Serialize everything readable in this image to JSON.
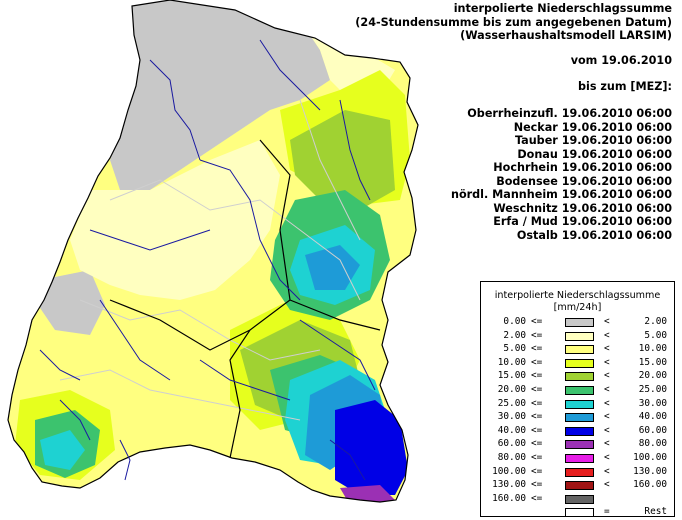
{
  "header": {
    "title_lines": [
      "interpolierte Niederschlagssumme",
      "(24-Stundensumme bis zum angegebenen Datum)",
      "(Wasserhaushaltsmodell LARSIM)"
    ],
    "date_line": "vom 19.06.2010",
    "until_line": "bis zum [MEZ]:"
  },
  "basins": [
    {
      "name": "Oberrheinzufl.",
      "datetime": "19.06.2010 06:00"
    },
    {
      "name": "Neckar",
      "datetime": "19.06.2010 06:00"
    },
    {
      "name": "Tauber",
      "datetime": "19.06.2010 06:00"
    },
    {
      "name": "Donau",
      "datetime": "19.06.2010 06:00"
    },
    {
      "name": "Hochrhein",
      "datetime": "19.06.2010 06:00"
    },
    {
      "name": "Bodensee",
      "datetime": "19.06.2010 06:00"
    },
    {
      "name": "nördl. Mannheim",
      "datetime": "19.06.2010 06:00"
    },
    {
      "name": "Weschnitz",
      "datetime": "19.06.2010 06:00"
    },
    {
      "name": "Erfa / Mud",
      "datetime": "19.06.2010 06:00"
    },
    {
      "name": "Ostalb",
      "datetime": "19.06.2010 06:00"
    }
  ],
  "legend": {
    "title": "interpolierte Niederschlagssumme",
    "unit": "[mm/24h]",
    "classes": [
      {
        "low": "0.00",
        "op_low": "<=",
        "op_high": "<",
        "high": "2.00",
        "color": "#c8c8c8"
      },
      {
        "low": "2.00",
        "op_low": "<=",
        "op_high": "<",
        "high": "5.00",
        "color": "#ffffc0"
      },
      {
        "low": "5.00",
        "op_low": "<=",
        "op_high": "<",
        "high": "10.00",
        "color": "#ffff80"
      },
      {
        "low": "10.00",
        "op_low": "<=",
        "op_high": "<",
        "high": "15.00",
        "color": "#e6ff1e"
      },
      {
        "low": "15.00",
        "op_low": "<=",
        "op_high": "<",
        "high": "20.00",
        "color": "#a0d232"
      },
      {
        "low": "20.00",
        "op_low": "<=",
        "op_high": "<",
        "high": "25.00",
        "color": "#3cc36e"
      },
      {
        "low": "25.00",
        "op_low": "<=",
        "op_high": "<",
        "high": "30.00",
        "color": "#1ed2d2"
      },
      {
        "low": "30.00",
        "op_low": "<=",
        "op_high": "<",
        "high": "40.00",
        "color": "#1e9bd7"
      },
      {
        "low": "40.00",
        "op_low": "<=",
        "op_high": "<",
        "high": "60.00",
        "color": "#0000e6"
      },
      {
        "low": "60.00",
        "op_low": "<=",
        "op_high": "<",
        "high": "80.00",
        "color": "#9b30b4"
      },
      {
        "low": "80.00",
        "op_low": "<=",
        "op_high": "<",
        "high": "100.00",
        "color": "#e61ee6"
      },
      {
        "low": "100.00",
        "op_low": "<=",
        "op_high": "<",
        "high": "130.00",
        "color": "#e61e1e"
      },
      {
        "low": "130.00",
        "op_low": "<=",
        "op_high": "<",
        "high": "160.00",
        "color": "#a01414"
      },
      {
        "low": "160.00",
        "op_low": "<=",
        "op_high": "",
        "high": "",
        "color": "#646464"
      },
      {
        "low": "",
        "op_low": "",
        "op_high": "=",
        "high": "Rest",
        "color": "#ffffff"
      }
    ]
  },
  "colors": {
    "rivers": "#1a1aa0",
    "boundaries": "#000000",
    "sub_boundaries": "#cfcfcf"
  }
}
